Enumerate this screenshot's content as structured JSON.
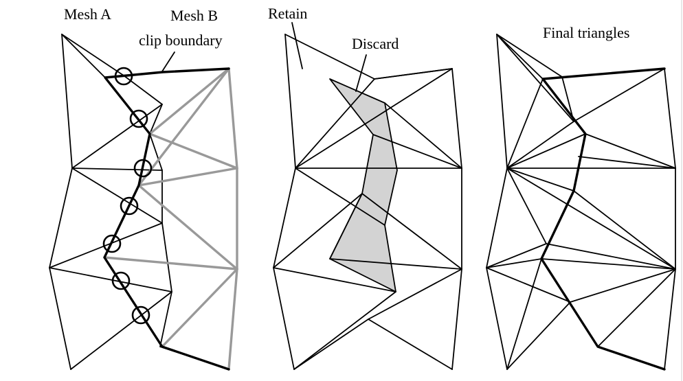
{
  "labels": {
    "mesh_a": "Mesh A",
    "mesh_b": "Mesh B",
    "clip_boundary": "clip boundary",
    "retain": "Retain",
    "discard": "Discard",
    "final_triangles": "Final triangles"
  },
  "colors": {
    "line": "#000000",
    "mesh_b_line": "#999999",
    "discard_fill": "#d3d3d3",
    "background": "#ffffff"
  }
}
